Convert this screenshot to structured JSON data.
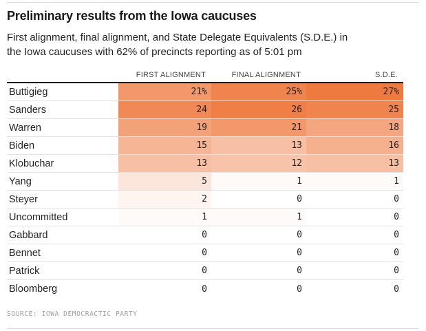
{
  "header": {
    "title": "Preliminary results from the Iowa caucuses",
    "subtitle_lines": [
      "First alignment, final alignment, and State Delegate Equivalents (S.D.E.) in",
      "the Iowa caucuses with 62% of precincts reporting as of 5:01 pm"
    ]
  },
  "table": {
    "columns": [
      "FIRST ALIGNMENT",
      "FINAL ALIGNMENT",
      "S.D.E."
    ],
    "heat": {
      "max": 27,
      "base_color": "#ee7a40",
      "zero_color": "#ffffff"
    },
    "rows": [
      {
        "name": "Buttigieg",
        "values": [
          21,
          25,
          27
        ],
        "display": [
          "21%",
          "25%",
          "27%"
        ]
      },
      {
        "name": "Sanders",
        "values": [
          24,
          26,
          25
        ],
        "display": [
          "24",
          "26",
          "25"
        ]
      },
      {
        "name": "Warren",
        "values": [
          19,
          21,
          18
        ],
        "display": [
          "19",
          "21",
          "18"
        ]
      },
      {
        "name": "Biden",
        "values": [
          15,
          13,
          16
        ],
        "display": [
          "15",
          "13",
          "16"
        ]
      },
      {
        "name": "Klobuchar",
        "values": [
          13,
          12,
          13
        ],
        "display": [
          "13",
          "12",
          "13"
        ]
      },
      {
        "name": "Yang",
        "values": [
          5,
          1,
          1
        ],
        "display": [
          "5",
          "1",
          "1"
        ]
      },
      {
        "name": "Steyer",
        "values": [
          2,
          0,
          0
        ],
        "display": [
          "2",
          "0",
          "0"
        ]
      },
      {
        "name": "Uncommitted",
        "values": [
          1,
          1,
          0
        ],
        "display": [
          "1",
          "1",
          "0"
        ]
      },
      {
        "name": "Gabbard",
        "values": [
          0,
          0,
          0
        ],
        "display": [
          "0",
          "0",
          "0"
        ]
      },
      {
        "name": "Bennet",
        "values": [
          0,
          0,
          0
        ],
        "display": [
          "0",
          "0",
          "0"
        ]
      },
      {
        "name": "Patrick",
        "values": [
          0,
          0,
          0
        ],
        "display": [
          "0",
          "0",
          "0"
        ]
      },
      {
        "name": "Bloomberg",
        "values": [
          0,
          0,
          0
        ],
        "display": [
          "0",
          "0",
          "0"
        ]
      }
    ]
  },
  "footer": {
    "source": "SOURCE: IOWA DEMOCRACTIC PARTY"
  },
  "chart_data": {
    "type": "table",
    "title": "Preliminary results from the Iowa caucuses",
    "subtitle": "First alignment, final alignment, and State Delegate Equivalents (S.D.E.) in the Iowa caucuses with 62% of precincts reporting as of 5:01 pm",
    "categories": [
      "Buttigieg",
      "Sanders",
      "Warren",
      "Biden",
      "Klobuchar",
      "Yang",
      "Steyer",
      "Uncommitted",
      "Gabbard",
      "Bennet",
      "Patrick",
      "Bloomberg"
    ],
    "series": [
      {
        "name": "First alignment",
        "values": [
          21,
          24,
          19,
          15,
          13,
          5,
          2,
          1,
          0,
          0,
          0,
          0
        ]
      },
      {
        "name": "Final alignment",
        "values": [
          25,
          26,
          21,
          13,
          12,
          1,
          0,
          1,
          0,
          0,
          0,
          0
        ]
      },
      {
        "name": "S.D.E.",
        "values": [
          27,
          25,
          18,
          16,
          13,
          1,
          0,
          0,
          0,
          0,
          0,
          0
        ]
      }
    ],
    "units": "percent",
    "layout_hints": {
      "cell_shading": "sequential orange heatmap, white at 0 to #ee7a40 at 27",
      "value_alignment": "right",
      "first_row_has_percent_signs": true
    },
    "source": "SOURCE: IOWA DEMOCRACTIC PARTY"
  }
}
